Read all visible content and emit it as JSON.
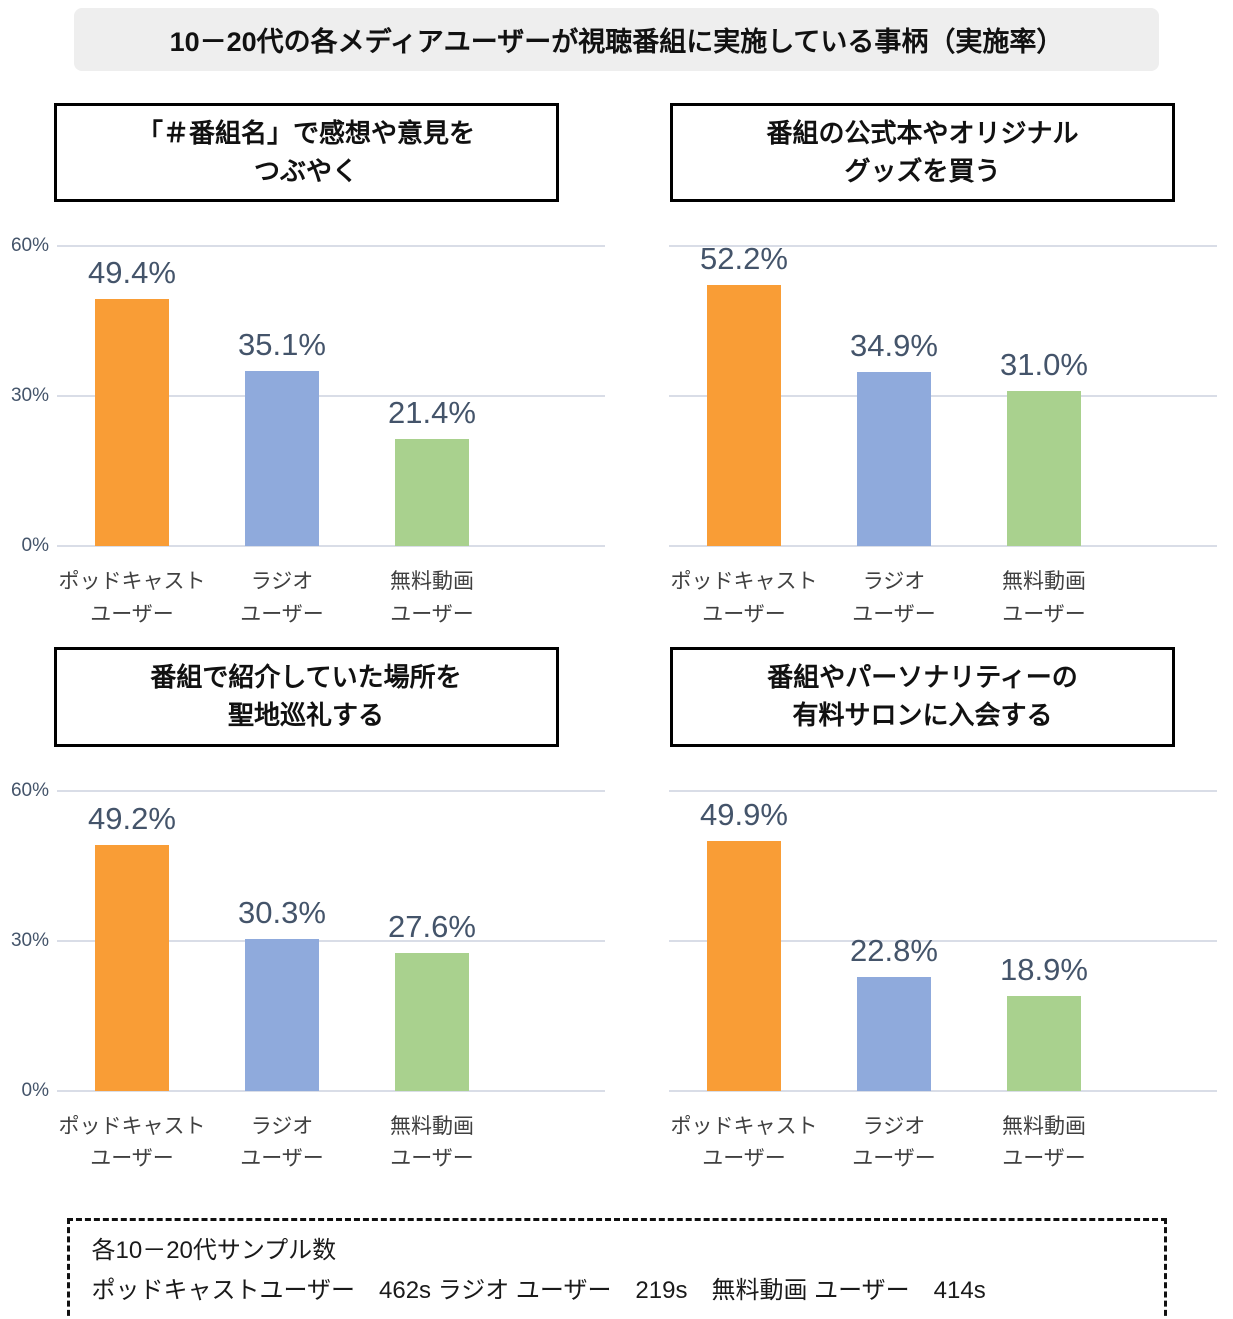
{
  "header": {
    "title": "10－20代の各メディアユーザーが視聴番組に実施している事柄（実施率）"
  },
  "colors": {
    "podcast_bar": "#F99D36",
    "radio_bar": "#8FAADC",
    "video_bar": "#A9D18E",
    "value_label": "#44546A",
    "tick_label": "#44546A",
    "gridline": "#D9DDE7",
    "title_banner_bg": "#EEEEEE"
  },
  "axis": {
    "categories_lines": [
      [
        "ポッドキャスト",
        "ユーザー"
      ],
      [
        "ラジオ",
        "ユーザー"
      ],
      [
        "無料動画",
        "ユーザー"
      ]
    ]
  },
  "chart_data": [
    {
      "type": "bar",
      "title": "「＃番組名」で感想や意見をつぶやく",
      "title_lines": [
        "「＃番組名」で感想や意見を",
        "つぶやく"
      ],
      "categories": [
        "ポッドキャストユーザー",
        "ラジオユーザー",
        "無料動画ユーザー"
      ],
      "values": [
        49.4,
        35.1,
        21.4
      ],
      "value_labels": [
        "49.4%",
        "35.1%",
        "21.4%"
      ],
      "ylim": [
        0,
        60
      ],
      "yticks": [
        {
          "value": 0,
          "label": "0%"
        },
        {
          "value": 30,
          "label": "30%"
        },
        {
          "value": 60,
          "label": "60%"
        }
      ],
      "show_ytick_labels": true,
      "grid": true,
      "legend": "none",
      "bar_colors": [
        "#F99D36",
        "#8FAADC",
        "#A9D18E"
      ]
    },
    {
      "type": "bar",
      "title": "番組の公式本やオリジナルグッズを買う",
      "title_lines": [
        "番組の公式本やオリジナル",
        "グッズを買う"
      ],
      "categories": [
        "ポッドキャストユーザー",
        "ラジオユーザー",
        "無料動画ユーザー"
      ],
      "values": [
        52.2,
        34.9,
        31.0
      ],
      "value_labels": [
        "52.2%",
        "34.9%",
        "31.0%"
      ],
      "ylim": [
        0,
        60
      ],
      "yticks": [
        {
          "value": 0,
          "label": "0%"
        },
        {
          "value": 30,
          "label": "30%"
        },
        {
          "value": 60,
          "label": "60%"
        }
      ],
      "show_ytick_labels": false,
      "grid": true,
      "legend": "none",
      "bar_colors": [
        "#F99D36",
        "#8FAADC",
        "#A9D18E"
      ]
    },
    {
      "type": "bar",
      "title": "番組で紹介していた場所を聖地巡礼する",
      "title_lines": [
        "番組で紹介していた場所を",
        "聖地巡礼する"
      ],
      "categories": [
        "ポッドキャストユーザー",
        "ラジオユーザー",
        "無料動画ユーザー"
      ],
      "values": [
        49.2,
        30.3,
        27.6
      ],
      "value_labels": [
        "49.2%",
        "30.3%",
        "27.6%"
      ],
      "ylim": [
        0,
        60
      ],
      "yticks": [
        {
          "value": 0,
          "label": "0%"
        },
        {
          "value": 30,
          "label": "30%"
        },
        {
          "value": 60,
          "label": "60%"
        }
      ],
      "show_ytick_labels": true,
      "grid": true,
      "legend": "none",
      "bar_colors": [
        "#F99D36",
        "#8FAADC",
        "#A9D18E"
      ]
    },
    {
      "type": "bar",
      "title": "番組やパーソナリティーの有料サロンに入会する",
      "title_lines": [
        "番組やパーソナリティーの",
        "有料サロンに入会する"
      ],
      "categories": [
        "ポッドキャストユーザー",
        "ラジオユーザー",
        "無料動画ユーザー"
      ],
      "values": [
        49.9,
        22.8,
        18.9
      ],
      "value_labels": [
        "49.9%",
        "22.8%",
        "18.9%"
      ],
      "ylim": [
        0,
        60
      ],
      "yticks": [
        {
          "value": 0,
          "label": "0%"
        },
        {
          "value": 30,
          "label": "30%"
        },
        {
          "value": 60,
          "label": "60%"
        }
      ],
      "show_ytick_labels": false,
      "grid": true,
      "legend": "none",
      "bar_colors": [
        "#F99D36",
        "#8FAADC",
        "#A9D18E"
      ]
    }
  ],
  "footer": {
    "line1": "各10－20代サンプル数",
    "line2": "ポッドキャストユーザー　462s ラジオ ユーザー　219s　無料動画 ユーザー　414s"
  }
}
